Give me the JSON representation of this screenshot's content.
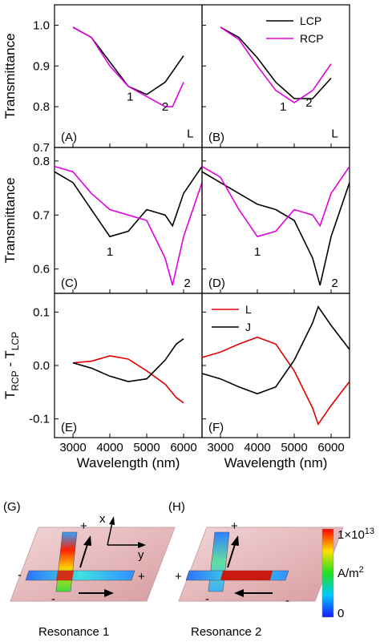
{
  "chart_data": [
    {
      "panel": "(A)",
      "type": "line",
      "ylabel": "Transmittance",
      "xlim": [
        2500,
        6500
      ],
      "ylim": [
        0.7,
        1.05
      ],
      "yticks": [
        "0.7",
        "0.8",
        "0.9",
        "1.0"
      ],
      "series": [
        {
          "name": "LCP",
          "color": "#000000",
          "x": [
            3000,
            3500,
            4000,
            4500,
            5000,
            5500,
            6000
          ],
          "y": [
            0.995,
            0.97,
            0.91,
            0.85,
            0.83,
            0.86,
            0.925
          ]
        },
        {
          "name": "RCP",
          "color": "#e000e0",
          "x": [
            3000,
            3500,
            4000,
            4500,
            5000,
            5500,
            5700,
            6000
          ],
          "y": [
            0.995,
            0.97,
            0.9,
            0.85,
            0.825,
            0.8,
            0.8,
            0.86
          ]
        }
      ],
      "annotations": [
        {
          "text": "1",
          "x": 4550,
          "y": 0.815
        },
        {
          "text": "2",
          "x": 5500,
          "y": 0.79
        },
        {
          "text": "L",
          "x": 6180,
          "y": 0.725
        }
      ]
    },
    {
      "panel": "(B)",
      "type": "line",
      "xlim": [
        2500,
        6500
      ],
      "ylim": [
        0.7,
        1.05
      ],
      "legend": {
        "position": "top-right",
        "entries": [
          {
            "name": "LCP",
            "color": "#000000"
          },
          {
            "name": "RCP",
            "color": "#e000e0"
          }
        ]
      },
      "series": [
        {
          "name": "LCP",
          "color": "#000000",
          "x": [
            3000,
            3500,
            4000,
            4500,
            5000,
            5500,
            6000
          ],
          "y": [
            0.995,
            0.97,
            0.92,
            0.86,
            0.82,
            0.82,
            0.87
          ]
        },
        {
          "name": "RCP",
          "color": "#e000e0",
          "x": [
            3000,
            3500,
            4000,
            4500,
            5000,
            5500,
            6000
          ],
          "y": [
            0.995,
            0.965,
            0.9,
            0.84,
            0.81,
            0.84,
            0.905
          ]
        }
      ],
      "annotations": [
        {
          "text": "1",
          "x": 4700,
          "y": 0.79
        },
        {
          "text": "2",
          "x": 5400,
          "y": 0.8
        },
        {
          "text": "L",
          "x": 6100,
          "y": 0.725
        }
      ]
    },
    {
      "panel": "(C)",
      "type": "line",
      "ylabel": "Transmittance",
      "xlim": [
        2500,
        6500
      ],
      "ylim": [
        0.555,
        0.825
      ],
      "yticks": [
        "0.6",
        "0.7",
        "0.8"
      ],
      "series": [
        {
          "name": "LCP",
          "color": "#000000",
          "x": [
            2500,
            3000,
            3500,
            4000,
            4500,
            5000,
            5500,
            5700,
            6000,
            6500
          ],
          "y": [
            0.78,
            0.76,
            0.71,
            0.66,
            0.67,
            0.71,
            0.7,
            0.68,
            0.74,
            0.79
          ]
        },
        {
          "name": "RCP",
          "color": "#e000e0",
          "x": [
            2500,
            3000,
            3500,
            4000,
            4500,
            5000,
            5500,
            5700,
            6000,
            6500
          ],
          "y": [
            0.79,
            0.78,
            0.74,
            0.71,
            0.7,
            0.69,
            0.62,
            0.57,
            0.66,
            0.76
          ]
        }
      ],
      "annotations": [
        {
          "text": "1",
          "x": 4000,
          "y": 0.625
        },
        {
          "text": "2",
          "x": 6100,
          "y": 0.567
        }
      ]
    },
    {
      "panel": "(D)",
      "type": "line",
      "xlim": [
        2500,
        6500
      ],
      "ylim": [
        0.555,
        0.825
      ],
      "series": [
        {
          "name": "LCP",
          "color": "#000000",
          "x": [
            2500,
            3000,
            3500,
            4000,
            4500,
            5000,
            5500,
            5700,
            6000,
            6500
          ],
          "y": [
            0.78,
            0.76,
            0.74,
            0.72,
            0.71,
            0.69,
            0.62,
            0.57,
            0.66,
            0.76
          ]
        },
        {
          "name": "RCP",
          "color": "#e000e0",
          "x": [
            2500,
            3000,
            3500,
            4000,
            4500,
            5000,
            5500,
            5700,
            6000,
            6500
          ],
          "y": [
            0.79,
            0.77,
            0.71,
            0.66,
            0.67,
            0.71,
            0.7,
            0.68,
            0.74,
            0.79
          ]
        }
      ],
      "annotations": [
        {
          "text": "1",
          "x": 4000,
          "y": 0.625
        },
        {
          "text": "2",
          "x": 6100,
          "y": 0.567
        }
      ]
    },
    {
      "panel": "(E)",
      "type": "line",
      "ylabel": {
        "base": "T",
        "sub1": "RCP",
        "mid": " - T",
        "sub2": "LCP"
      },
      "xlabel": "Wavelength (nm)",
      "xlim": [
        2500,
        6500
      ],
      "ylim": [
        -0.135,
        0.135
      ],
      "yticks": [
        "-0.1",
        "0.0",
        "0.1"
      ],
      "xticks": [
        "3000",
        "4000",
        "5000",
        "6000"
      ],
      "series": [
        {
          "name": "L",
          "color": "#e00000",
          "x": [
            3000,
            3500,
            4000,
            4500,
            5000,
            5500,
            5800,
            6000
          ],
          "y": [
            0.005,
            0.008,
            0.018,
            0.012,
            -0.01,
            -0.035,
            -0.06,
            -0.07
          ]
        },
        {
          "name": "J",
          "color": "#000000",
          "x": [
            3000,
            3500,
            4000,
            4500,
            5000,
            5500,
            5800,
            6000
          ],
          "y": [
            0.005,
            -0.005,
            -0.02,
            -0.03,
            -0.025,
            0.01,
            0.04,
            0.05
          ]
        }
      ]
    },
    {
      "panel": "(F)",
      "type": "line",
      "xlabel": "Wavelength (nm)",
      "xlim": [
        2500,
        6500
      ],
      "ylim": [
        -0.135,
        0.135
      ],
      "xticks": [
        "3000",
        "4000",
        "5000",
        "6000"
      ],
      "legend": {
        "position": "top-left",
        "entries": [
          {
            "name": "L",
            "color": "#e00000"
          },
          {
            "name": "J",
            "color": "#000000"
          }
        ]
      },
      "series": [
        {
          "name": "L",
          "color": "#e00000",
          "x": [
            2500,
            3000,
            3500,
            4000,
            4500,
            5000,
            5500,
            5650,
            6000,
            6500
          ],
          "y": [
            0.015,
            0.025,
            0.04,
            0.053,
            0.04,
            -0.01,
            -0.08,
            -0.11,
            -0.075,
            -0.03
          ]
        },
        {
          "name": "J",
          "color": "#000000",
          "x": [
            2500,
            3000,
            3500,
            4000,
            4500,
            5000,
            5500,
            5650,
            6000,
            6500
          ],
          "y": [
            -0.015,
            -0.025,
            -0.04,
            -0.053,
            -0.04,
            0.01,
            0.08,
            0.11,
            0.075,
            0.03
          ]
        }
      ]
    }
  ],
  "illustrations": {
    "g_label": "(G)",
    "h_label": "(H)",
    "g_caption": "Resonance 1",
    "h_caption": "Resonance 2",
    "axis_x": "x",
    "axis_y": "y",
    "charges_g": [
      "+",
      "-",
      "-",
      "+"
    ],
    "charges_h": [
      "+",
      "-",
      "+",
      "-"
    ],
    "colorbar_max": "1×10",
    "colorbar_exp": "13",
    "colorbar_unit": "A/m",
    "colorbar_unit_exp": "2",
    "colorbar_min": "0"
  }
}
